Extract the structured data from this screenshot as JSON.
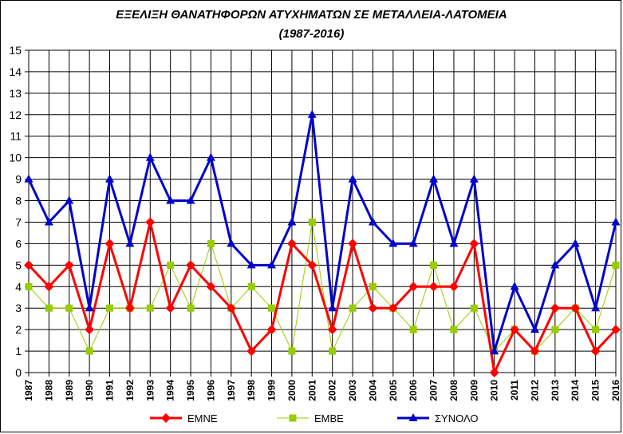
{
  "chart_data": {
    "type": "line",
    "title": "ΕΞΕΛΙΞΗ ΘΑΝΑΤΗΦΟΡΩΝ ΑΤΥΧΗΜΑΤΩΝ ΣΕ ΜΕΤΑΛΛΕΙΑ-ΛΑΤΟΜΕΙΑ",
    "subtitle": "(1987-2016)",
    "xlabel": "",
    "ylabel": "",
    "categories": [
      "1987",
      "1988",
      "1989",
      "1990",
      "1991",
      "1992",
      "1993",
      "1994",
      "1995",
      "1996",
      "1997",
      "1998",
      "1999",
      "2000",
      "2001",
      "2002",
      "2003",
      "2004",
      "2005",
      "2006",
      "2007",
      "2008",
      "2009",
      "2010",
      "2011",
      "2012",
      "2013",
      "2014",
      "2015",
      "2016"
    ],
    "ylim": [
      0,
      15
    ],
    "yticks": [
      "0",
      "1",
      "2",
      "3",
      "4",
      "5",
      "6",
      "7",
      "8",
      "9",
      "10",
      "11",
      "12",
      "13",
      "14",
      "15"
    ],
    "grid": true,
    "legend_position": "bottom",
    "series": [
      {
        "name": "ΕΜΝΕ",
        "color": "#ff0000",
        "marker": "diamond",
        "line_width": 3,
        "values": [
          5,
          4,
          5,
          2,
          6,
          3,
          7,
          3,
          5,
          4,
          3,
          1,
          2,
          6,
          5,
          2,
          6,
          3,
          3,
          4,
          4,
          4,
          6,
          0,
          2,
          1,
          3,
          3,
          1,
          2
        ]
      },
      {
        "name": "ΕΜΒΕ",
        "color": "#99cc00",
        "marker": "square",
        "line_width": 1,
        "values": [
          4,
          3,
          3,
          1,
          3,
          3,
          3,
          5,
          3,
          6,
          3,
          4,
          3,
          1,
          7,
          1,
          3,
          4,
          3,
          2,
          5,
          2,
          3,
          1,
          2,
          1,
          2,
          3,
          2,
          5
        ]
      },
      {
        "name": "ΣΥΝΟΛΟ",
        "color": "#0000cc",
        "marker": "triangle",
        "line_width": 3,
        "values": [
          9,
          7,
          8,
          3,
          9,
          6,
          10,
          8,
          8,
          10,
          6,
          5,
          5,
          7,
          12,
          3,
          9,
          7,
          6,
          6,
          9,
          6,
          9,
          1,
          4,
          2,
          5,
          6,
          3,
          7
        ]
      }
    ]
  }
}
